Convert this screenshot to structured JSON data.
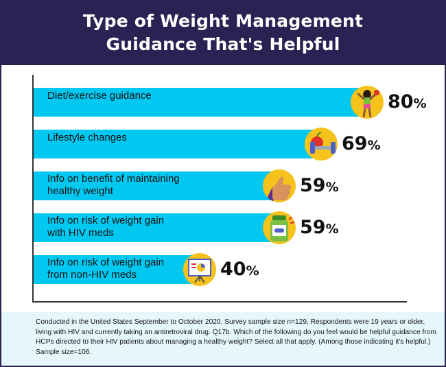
{
  "header": {
    "title_line1": "Type of Weight Management",
    "title_line2": "Guidance That's Helpful"
  },
  "chart_data": {
    "type": "bar",
    "orientation": "horizontal",
    "categories": [
      "Diet/exercise guidance",
      "Lifestyle changes",
      "Info on benefit of maintaining healthy weight",
      "Info on risk of weight gain with HIV meds",
      "Info on risk of weight gain from non-HIV meds"
    ],
    "label_lines": [
      [
        "Diet/exercise guidance"
      ],
      [
        "Lifestyle changes"
      ],
      [
        "Info on benefit of maintaining",
        "healthy weight"
      ],
      [
        "Info on risk of weight gain",
        "with HIV meds"
      ],
      [
        "Info on risk of weight gain",
        "from non-HIV meds"
      ]
    ],
    "values": [
      80,
      69,
      59,
      59,
      40
    ],
    "value_labels": [
      "80",
      "69",
      "59",
      "59",
      "40"
    ],
    "unit": "%",
    "icons": [
      "woman-exercise-icon",
      "dumbbell-apple-icon",
      "thumbs-up-icon",
      "medicine-bottle-icon",
      "presentation-board-icon"
    ],
    "xlim": [
      0,
      100
    ],
    "grid": false,
    "bar_color": "#00c8f0"
  },
  "colors": {
    "header_bg": "#2b2152",
    "bar": "#00c8f0",
    "icon_bg": "#f6c21c",
    "footer_bg": "#e6f7fc"
  },
  "footer": {
    "note": "Conducted in the United States September to October 2020. Survey sample size n=129. Respondents were 19 years or older, living with HIV and currently taking an antiretroviral drug. Q17b. Which of the following do you feel would be helpful guidance from HCPs directed to their HIV patients about managing a healthy weight? Select all that apply. (Among those indicating it's helpful.) Sample size=106."
  }
}
